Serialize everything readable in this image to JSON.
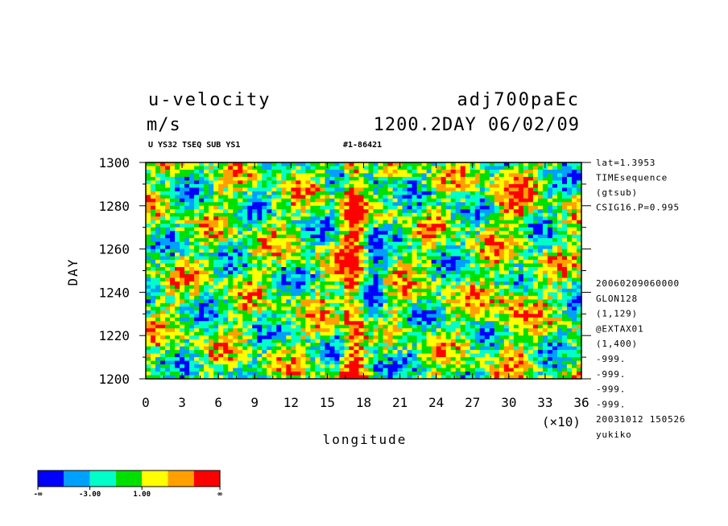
{
  "header": {
    "title_left": "u-velocity",
    "title_right": "adj700paEc",
    "units": "m/s",
    "time_label": "1200.2DAY 06/02/09",
    "subtitle_left": "U YS32 TSEQ SUB YS1",
    "subtitle_right": "#1-86421"
  },
  "side_info": {
    "top_lines": [
      "lat=1.3953",
      "TIMEsequence",
      "(gtsub)",
      "CSIG16.P=0.995"
    ],
    "bottom_lines": [
      "20060209060000",
      "GLON128",
      "(1,129)",
      "@EXTAX01",
      "(1,400)",
      "-999.",
      "-999.",
      "-999.",
      "-999.",
      "20031012 150526",
      "yukiko"
    ]
  },
  "chart_data": {
    "type": "heatmap",
    "title": "u-velocity",
    "xlabel": "longitude",
    "ylabel": "DAY",
    "x_multiplier_label": "(×10)",
    "x_ticks": [
      "0",
      "3",
      "6",
      "9",
      "12",
      "15",
      "18",
      "21",
      "24",
      "27",
      "30",
      "33",
      "36"
    ],
    "y_ticks": [
      "1200",
      "1220",
      "1240",
      "1260",
      "1280",
      "1300"
    ],
    "xlim": [
      0,
      36
    ],
    "ylim": [
      1200,
      1300
    ],
    "colorbar": {
      "colors": [
        "#0000ff",
        "#00a0ff",
        "#00ffc8",
        "#00e000",
        "#ffff00",
        "#ffa000",
        "#ff0000"
      ],
      "labels": [
        "-∞",
        "-3.00",
        "1.00",
        "∞"
      ]
    }
  }
}
